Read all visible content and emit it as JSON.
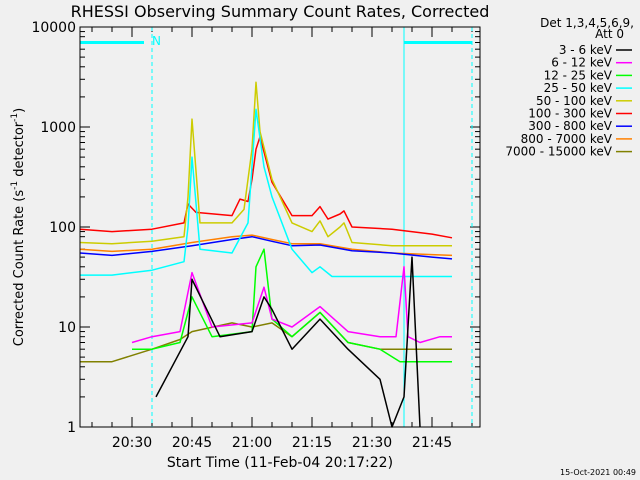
{
  "chart_data": {
    "type": "line",
    "title": "RHESSI Observing Summary Count Rates, Corrected",
    "xlabel": "Start Time (11-Feb-04 20:17:22)",
    "ylabel": "Corrected Count Rate (s⁻¹ detector⁻¹)",
    "ylabel_main": "Corrected Count Rate (s",
    "ylabel_exp1": "-1",
    "ylabel_mid": " detector",
    "ylabel_exp2": "-1",
    "ylabel_end": ")",
    "yscale": "log",
    "ylim": [
      1,
      10000
    ],
    "xlim": [
      "20:17:22",
      "21:57:00"
    ],
    "x_ticks": [
      "20:30",
      "20:45",
      "21:00",
      "21:15",
      "21:30",
      "21:45"
    ],
    "y_ticks": [
      "1",
      "10",
      "100",
      "1000",
      "10000"
    ],
    "grid": false,
    "legend_header": [
      "Det 1,3,4,5,6,9,",
      "Att 0"
    ],
    "legend_placement": "right-outside",
    "annotations": {
      "top_left_marker": "N",
      "timestamp": "15-Oct-2021 00:49"
    },
    "series": [
      {
        "name": "3 - 6 keV",
        "color": "#000000",
        "x": [
          "20:17",
          "20:33",
          "20:36",
          "20:44",
          "20:45",
          "20:52",
          "21:00",
          "21:03",
          "21:05",
          "21:10",
          "21:17",
          "21:24",
          "21:32",
          "21:35",
          "21:38",
          "21:40",
          "21:42",
          "21:47",
          "21:50"
        ],
        "y": [
          null,
          null,
          2,
          8,
          30,
          8,
          9,
          20,
          15,
          6,
          12,
          6,
          3,
          1,
          2,
          50,
          1,
          null,
          null
        ]
      },
      {
        "name": "6 - 12 keV",
        "color": "#ff00ff",
        "x": [
          "20:17",
          "20:30",
          "20:35",
          "20:42",
          "20:45",
          "20:50",
          "21:00",
          "21:03",
          "21:05",
          "21:10",
          "21:17",
          "21:24",
          "21:32",
          "21:36",
          "21:38",
          "21:39",
          "21:42",
          "21:47",
          "21:50"
        ],
        "y": [
          null,
          7,
          8,
          9,
          35,
          10,
          11,
          25,
          12,
          10,
          16,
          9,
          8,
          8,
          40,
          8,
          7,
          8,
          8
        ]
      },
      {
        "name": "12 - 25 keV",
        "color": "#00ff00",
        "x": [
          "20:17",
          "20:30",
          "20:35",
          "20:42",
          "20:45",
          "20:50",
          "21:00",
          "21:01",
          "21:03",
          "21:05",
          "21:10",
          "21:17",
          "21:24",
          "21:32",
          "21:37",
          "21:40",
          "21:45",
          "21:50"
        ],
        "y": [
          null,
          6,
          6,
          7,
          20,
          8,
          9,
          40,
          60,
          12,
          8,
          14,
          7,
          6,
          4.5,
          4.5,
          4.5,
          4.5
        ]
      },
      {
        "name": "25 - 50 keV",
        "color": "#00ffff",
        "x": [
          "20:17",
          "20:25",
          "20:35",
          "20:43",
          "20:44",
          "20:45",
          "20:47",
          "20:55",
          "20:59",
          "21:01",
          "21:03",
          "21:05",
          "21:10",
          "21:15",
          "21:17",
          "21:20",
          "21:25",
          "21:35",
          "21:45",
          "21:50"
        ],
        "y": [
          33,
          33,
          37,
          45,
          100,
          500,
          60,
          55,
          110,
          1500,
          400,
          200,
          60,
          35,
          40,
          32,
          32,
          32,
          32,
          32
        ]
      },
      {
        "name": "50 - 100 keV",
        "color": "#cccc00",
        "x": [
          "20:17",
          "20:25",
          "20:35",
          "20:43",
          "20:44",
          "20:45",
          "20:47",
          "20:55",
          "20:58",
          "21:00",
          "21:01",
          "21:02",
          "21:05",
          "21:10",
          "21:15",
          "21:17",
          "21:19",
          "21:22",
          "21:23",
          "21:25",
          "21:35",
          "21:45",
          "21:50"
        ],
        "y": [
          70,
          68,
          72,
          80,
          200,
          1200,
          110,
          110,
          150,
          600,
          2800,
          900,
          300,
          110,
          90,
          115,
          80,
          100,
          110,
          70,
          65,
          65,
          65
        ]
      },
      {
        "name": "100 - 300 keV",
        "color": "#ff0000",
        "x": [
          "20:17",
          "20:25",
          "20:35",
          "20:43",
          "20:44",
          "20:46",
          "20:55",
          "20:57",
          "20:59",
          "21:00",
          "21:01",
          "21:02",
          "21:05",
          "21:10",
          "21:15",
          "21:17",
          "21:19",
          "21:22",
          "21:23",
          "21:25",
          "21:35",
          "21:45",
          "21:50"
        ],
        "y": [
          95,
          90,
          95,
          110,
          170,
          140,
          130,
          190,
          180,
          300,
          600,
          800,
          280,
          130,
          130,
          160,
          120,
          135,
          145,
          100,
          95,
          85,
          78
        ]
      },
      {
        "name": "300 - 800 keV",
        "color": "#0000ff",
        "x": [
          "20:17",
          "20:25",
          "20:35",
          "20:45",
          "20:55",
          "21:00",
          "21:05",
          "21:10",
          "21:17",
          "21:25",
          "21:35",
          "21:45",
          "21:50"
        ],
        "y": [
          55,
          52,
          57,
          65,
          75,
          80,
          72,
          65,
          66,
          58,
          55,
          50,
          48
        ]
      },
      {
        "name": "800 - 7000 keV",
        "color": "#ff8000",
        "x": [
          "20:17",
          "20:25",
          "20:35",
          "20:45",
          "20:55",
          "21:00",
          "21:05",
          "21:10",
          "21:17",
          "21:25",
          "21:35",
          "21:45",
          "21:50"
        ],
        "y": [
          60,
          57,
          60,
          70,
          80,
          83,
          75,
          68,
          68,
          60,
          55,
          53,
          52
        ]
      },
      {
        "name": "7000 - 15000 keV",
        "color": "#808000",
        "x": [
          "20:17",
          "20:25",
          "20:35",
          "20:42",
          "20:45",
          "20:55",
          "21:00",
          "21:05",
          "21:10",
          "21:17",
          "21:24",
          "21:32",
          "21:35",
          "21:40",
          "21:45",
          "21:50"
        ],
        "y": [
          4.5,
          4.5,
          6,
          7.5,
          9,
          11,
          10,
          11,
          8,
          14,
          7,
          6,
          6,
          6,
          6,
          6
        ]
      }
    ],
    "vertical_markers": [
      {
        "color": "#00ffff",
        "style": "solid",
        "x": "20:17"
      },
      {
        "color": "#00ffff",
        "style": "dashed",
        "x": "20:35"
      },
      {
        "color": "#00ffff",
        "style": "solid",
        "x": "21:38"
      },
      {
        "color": "#00ffff",
        "style": "dashed",
        "x": "21:55"
      }
    ],
    "horizontal_markers": [
      {
        "color": "#00ffff",
        "y": 7000,
        "x_from": "20:17",
        "x_to": "20:33"
      },
      {
        "color": "#00ffff",
        "y": 7000,
        "x_from": "21:38",
        "x_to": "21:55"
      }
    ]
  }
}
